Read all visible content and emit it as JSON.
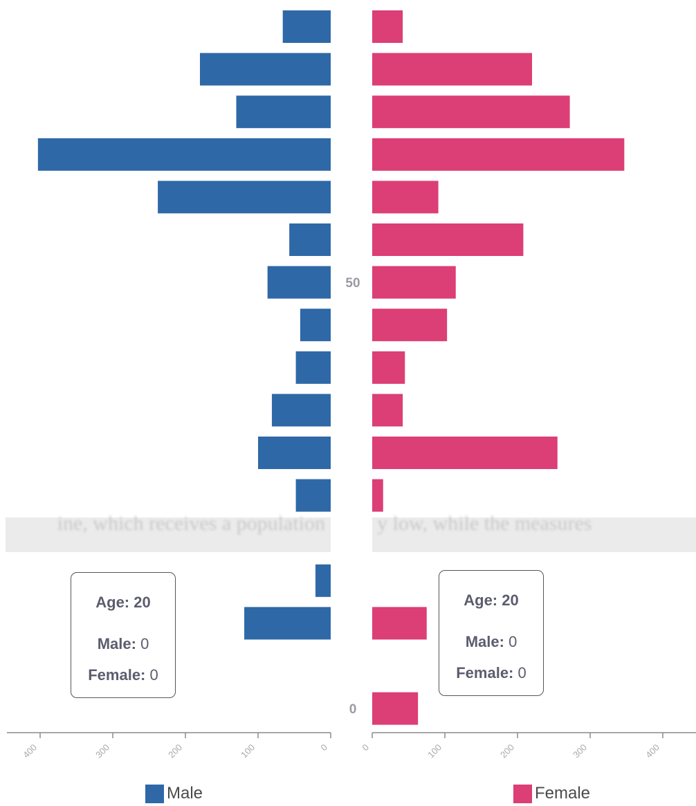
{
  "chart_data": {
    "type": "bar",
    "subtype": "population-pyramid",
    "title": "",
    "xlabel": "",
    "ylabel": "",
    "xlim": [
      0,
      450
    ],
    "x_ticks": [
      "0",
      "100",
      "200",
      "300",
      "400"
    ],
    "y_tick_labels": [
      {
        "label": "50",
        "row": 6
      },
      {
        "label": "0",
        "row": 16
      }
    ],
    "series": [
      {
        "name": "Male",
        "color": "#2f68a7",
        "values": [
          66,
          180,
          130,
          403,
          238,
          57,
          87,
          42,
          48,
          81,
          100,
          48,
          null,
          21,
          119,
          null,
          null
        ]
      },
      {
        "name": "Female",
        "color": "#dc3e76",
        "values": [
          42,
          220,
          272,
          347,
          91,
          208,
          115,
          103,
          45,
          42,
          255,
          15,
          null,
          null,
          75,
          null,
          63
        ]
      }
    ],
    "legend": {
      "placement": "bottom",
      "items": [
        "Male",
        "Female"
      ]
    }
  },
  "tooltips": [
    {
      "age_label": "Age:",
      "age": "20",
      "male_label": "Male:",
      "male": "0",
      "female_label": "Female:",
      "female": "0"
    },
    {
      "age_label": "Age:",
      "age": "20",
      "male_label": "Male:",
      "male": "0",
      "female_label": "Female:",
      "female": "0"
    }
  ],
  "legend_labels": {
    "male": "Male",
    "female": "Female"
  },
  "obscuring_band": {
    "left_text": "ine, which receives a population",
    "right_text": "y low, while the measures"
  }
}
